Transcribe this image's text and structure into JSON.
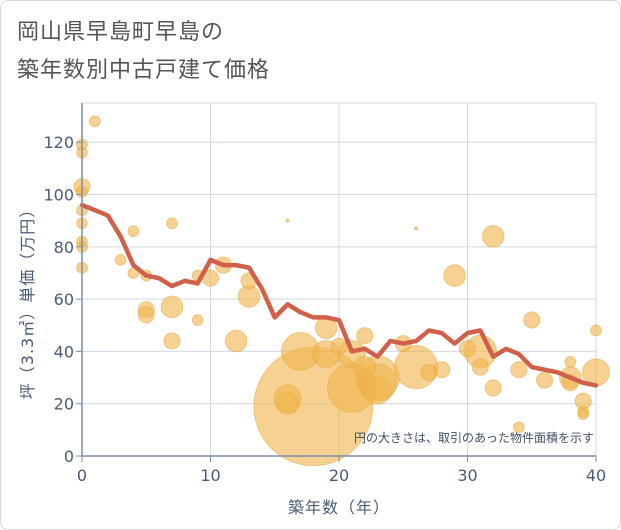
{
  "title_line1": "岡山県早島町早島の",
  "title_line2": "築年数別中古戸建て価格",
  "chart_data": {
    "type": "scatter",
    "xlabel": "築年数（年）",
    "ylabel": "坪（3.3㎡）単価（万円）",
    "xlim": [
      0,
      40
    ],
    "ylim": [
      0,
      135
    ],
    "x_ticks": [
      0,
      10,
      20,
      30,
      40
    ],
    "y_ticks": [
      0,
      20,
      40,
      60,
      80,
      100,
      120
    ],
    "grid": true,
    "annotation": "円の大きさは、取引のあった物件面積を示す",
    "colors": {
      "bubble": "#f0b54d",
      "line": "#d0604a",
      "grid": "#d0d8e2",
      "axis": "#7a8ea8",
      "text": "#4a5c75"
    },
    "bubbles": [
      {
        "x": 0,
        "y": 119,
        "s": 2
      },
      {
        "x": 0,
        "y": 116,
        "s": 2
      },
      {
        "x": 0,
        "y": 103,
        "s": 3
      },
      {
        "x": 0,
        "y": 101,
        "s": 2
      },
      {
        "x": 0,
        "y": 94,
        "s": 2
      },
      {
        "x": 0,
        "y": 89,
        "s": 2
      },
      {
        "x": 0,
        "y": 82,
        "s": 2
      },
      {
        "x": 0,
        "y": 80,
        "s": 2
      },
      {
        "x": 0,
        "y": 72,
        "s": 2
      },
      {
        "x": 1,
        "y": 128,
        "s": 2
      },
      {
        "x": 3,
        "y": 75,
        "s": 2
      },
      {
        "x": 4,
        "y": 86,
        "s": 2
      },
      {
        "x": 4,
        "y": 70,
        "s": 2
      },
      {
        "x": 5,
        "y": 69,
        "s": 2
      },
      {
        "x": 5,
        "y": 56,
        "s": 3
      },
      {
        "x": 5,
        "y": 54,
        "s": 3
      },
      {
        "x": 7,
        "y": 89,
        "s": 2
      },
      {
        "x": 7,
        "y": 57,
        "s": 4
      },
      {
        "x": 7,
        "y": 44,
        "s": 3
      },
      {
        "x": 9,
        "y": 52,
        "s": 2
      },
      {
        "x": 9,
        "y": 69,
        "s": 2
      },
      {
        "x": 10,
        "y": 68,
        "s": 3
      },
      {
        "x": 11,
        "y": 73,
        "s": 3
      },
      {
        "x": 12,
        "y": 44,
        "s": 4
      },
      {
        "x": 13,
        "y": 67,
        "s": 3
      },
      {
        "x": 13,
        "y": 61,
        "s": 4
      },
      {
        "x": 16,
        "y": 90,
        "s": 0.6
      },
      {
        "x": 16,
        "y": 22,
        "s": 5
      },
      {
        "x": 16,
        "y": 20,
        "s": 4
      },
      {
        "x": 17,
        "y": 40,
        "s": 7
      },
      {
        "x": 18,
        "y": 19,
        "s": 22
      },
      {
        "x": 19,
        "y": 49,
        "s": 4
      },
      {
        "x": 19,
        "y": 39,
        "s": 5
      },
      {
        "x": 20,
        "y": 42,
        "s": 3
      },
      {
        "x": 21,
        "y": 39,
        "s": 5
      },
      {
        "x": 21,
        "y": 26,
        "s": 9
      },
      {
        "x": 22,
        "y": 46,
        "s": 3
      },
      {
        "x": 22,
        "y": 34,
        "s": 4
      },
      {
        "x": 23,
        "y": 30,
        "s": 8
      },
      {
        "x": 23,
        "y": 28,
        "s": 7
      },
      {
        "x": 23,
        "y": 25,
        "s": 5
      },
      {
        "x": 25,
        "y": 43,
        "s": 3
      },
      {
        "x": 26,
        "y": 87,
        "s": 0.6
      },
      {
        "x": 26,
        "y": 34,
        "s": 8
      },
      {
        "x": 27,
        "y": 32,
        "s": 3
      },
      {
        "x": 28,
        "y": 33,
        "s": 3
      },
      {
        "x": 29,
        "y": 69,
        "s": 4
      },
      {
        "x": 30,
        "y": 41,
        "s": 3
      },
      {
        "x": 31,
        "y": 40,
        "s": 6
      },
      {
        "x": 31,
        "y": 34,
        "s": 3
      },
      {
        "x": 32,
        "y": 84,
        "s": 4
      },
      {
        "x": 32,
        "y": 26,
        "s": 3
      },
      {
        "x": 34,
        "y": 33,
        "s": 3
      },
      {
        "x": 34,
        "y": 11,
        "s": 2
      },
      {
        "x": 35,
        "y": 52,
        "s": 3
      },
      {
        "x": 36,
        "y": 29,
        "s": 3
      },
      {
        "x": 38,
        "y": 36,
        "s": 2
      },
      {
        "x": 38,
        "y": 30,
        "s": 4
      },
      {
        "x": 38,
        "y": 28,
        "s": 3
      },
      {
        "x": 39,
        "y": 21,
        "s": 3
      },
      {
        "x": 39,
        "y": 17,
        "s": 2
      },
      {
        "x": 39,
        "y": 16,
        "s": 2
      },
      {
        "x": 40,
        "y": 48,
        "s": 2
      },
      {
        "x": 40,
        "y": 32,
        "s": 5
      }
    ],
    "trend_x": [
      0,
      1,
      2,
      3,
      4,
      5,
      6,
      7,
      8,
      9,
      10,
      11,
      12,
      13,
      14,
      15,
      16,
      17,
      18,
      19,
      20,
      21,
      22,
      23,
      24,
      25,
      26,
      27,
      28,
      29,
      30,
      31,
      32,
      33,
      34,
      35,
      36,
      37,
      38,
      39,
      40
    ],
    "trend_y": [
      96,
      94,
      92,
      84,
      73,
      69,
      68,
      65,
      67,
      66,
      75,
      73,
      73,
      72,
      64,
      53,
      58,
      55,
      53,
      53,
      52,
      40,
      41,
      38,
      44,
      43,
      44,
      48,
      47,
      43,
      47,
      48,
      38,
      41,
      39,
      34,
      33,
      32,
      30,
      28,
      27
    ]
  }
}
